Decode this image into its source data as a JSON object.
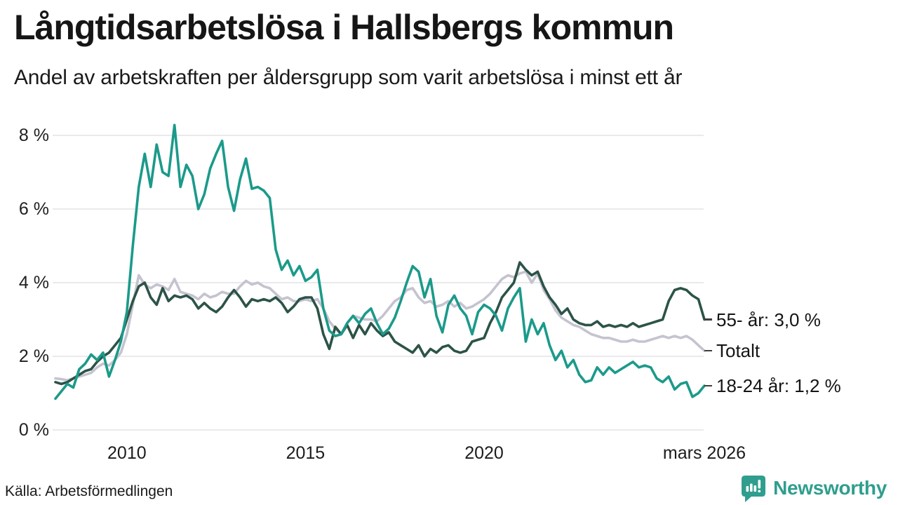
{
  "header": {
    "title": "Långtidsarbetslösa i Hallsbergs kommun",
    "subtitle": "Andel av arbetskraften per åldersgrupp som varit arbetslösa i minst ett år"
  },
  "footer": {
    "source": "Källa: Arbetsförmedlingen",
    "logo_text": "Newsworthy",
    "logo_color": "#2f9e8e"
  },
  "chart_data": {
    "type": "line",
    "title": "Långtidsarbetslösa i Hallsbergs kommun",
    "subtitle": "Andel av arbetskraften per åldersgrupp som varit arbetslösa i minst ett år",
    "x_start": "2008-01",
    "x_end": "2026-03",
    "x_unit": "months since January 2008, one value every 2 months",
    "ylim": [
      0,
      8.6
    ],
    "grid": true,
    "gridline_color": "#e4e2e7",
    "tick_color": "#3f3f3f",
    "y_ticks": [
      {
        "label": "0 %",
        "value": 0
      },
      {
        "label": "2 %",
        "value": 2
      },
      {
        "label": "4 %",
        "value": 4
      },
      {
        "label": "6 %",
        "value": 6
      },
      {
        "label": "8 %",
        "value": 8
      }
    ],
    "x_ticks": [
      {
        "label": "2010",
        "month": 24
      },
      {
        "label": "2015",
        "month": 84
      },
      {
        "label": "2020",
        "month": 144
      },
      {
        "label": "mars 2026",
        "month": 218
      }
    ],
    "series": [
      {
        "name": "55- år",
        "end_label": "55- år: 3,0 %",
        "last_value": 3.0,
        "color": "#2c5348",
        "z": 1,
        "values": [
          1.3,
          1.25,
          1.3,
          1.4,
          1.5,
          1.6,
          1.65,
          1.85,
          2.0,
          2.1,
          2.3,
          2.5,
          3.0,
          3.5,
          3.9,
          4.0,
          3.6,
          3.4,
          3.85,
          3.5,
          3.65,
          3.6,
          3.65,
          3.55,
          3.3,
          3.45,
          3.3,
          3.2,
          3.35,
          3.6,
          3.8,
          3.6,
          3.35,
          3.55,
          3.5,
          3.55,
          3.5,
          3.6,
          3.45,
          3.2,
          3.35,
          3.55,
          3.6,
          3.6,
          3.3,
          2.6,
          2.2,
          2.8,
          2.6,
          2.85,
          2.5,
          2.85,
          2.6,
          2.9,
          2.7,
          2.55,
          2.65,
          2.4,
          2.3,
          2.2,
          2.1,
          2.3,
          2.0,
          2.2,
          2.1,
          2.25,
          2.3,
          2.15,
          2.1,
          2.15,
          2.4,
          2.45,
          2.5,
          2.9,
          3.2,
          3.6,
          3.8,
          4.0,
          4.55,
          4.35,
          4.2,
          4.3,
          3.9,
          3.6,
          3.4,
          3.15,
          3.3,
          3.0,
          2.9,
          2.85,
          2.85,
          2.95,
          2.8,
          2.85,
          2.8,
          2.85,
          2.8,
          2.9,
          2.8,
          2.85,
          2.9,
          2.95,
          3.0,
          3.5,
          3.8,
          3.85,
          3.8,
          3.65,
          3.55,
          3.0
        ]
      },
      {
        "name": "Totalt",
        "end_label": "Totalt",
        "last_value": 2.2,
        "color": "#c5c3cf",
        "z": 0,
        "values": [
          1.4,
          1.38,
          1.35,
          1.4,
          1.45,
          1.5,
          1.55,
          1.7,
          1.8,
          1.75,
          1.9,
          2.1,
          2.6,
          3.4,
          4.2,
          3.95,
          3.85,
          3.95,
          3.9,
          3.8,
          4.1,
          3.75,
          3.7,
          3.65,
          3.55,
          3.7,
          3.6,
          3.65,
          3.75,
          3.7,
          3.7,
          3.9,
          4.05,
          3.95,
          4.0,
          3.9,
          3.85,
          3.7,
          3.55,
          3.6,
          3.5,
          3.5,
          3.55,
          3.5,
          3.55,
          3.3,
          2.95,
          2.75,
          2.6,
          2.9,
          3.1,
          3.05,
          3.0,
          3.0,
          2.95,
          3.1,
          3.3,
          3.5,
          3.6,
          3.8,
          3.85,
          3.6,
          3.45,
          3.5,
          3.35,
          3.4,
          3.5,
          3.35,
          3.45,
          3.3,
          3.35,
          3.45,
          3.55,
          3.7,
          3.9,
          4.1,
          4.2,
          4.15,
          4.25,
          4.3,
          4.0,
          4.25,
          3.8,
          3.55,
          3.25,
          3.05,
          2.95,
          2.85,
          2.8,
          2.7,
          2.6,
          2.55,
          2.5,
          2.5,
          2.45,
          2.4,
          2.4,
          2.45,
          2.4,
          2.4,
          2.45,
          2.5,
          2.55,
          2.5,
          2.55,
          2.5,
          2.55,
          2.45,
          2.3,
          2.15
        ]
      },
      {
        "name": "18-24 år",
        "end_label": "18-24 år: 1,2 %",
        "last_value": 1.2,
        "color": "#1b9a8a",
        "z": 2,
        "values": [
          0.85,
          1.05,
          1.25,
          1.15,
          1.65,
          1.8,
          2.05,
          1.9,
          2.1,
          1.45,
          1.9,
          2.4,
          3.2,
          5.0,
          6.6,
          7.5,
          6.6,
          7.75,
          7.0,
          6.9,
          8.28,
          6.6,
          7.2,
          6.9,
          6.0,
          6.4,
          7.1,
          7.5,
          7.85,
          6.6,
          5.95,
          6.8,
          7.37,
          6.55,
          6.6,
          6.5,
          6.3,
          4.9,
          4.35,
          4.6,
          4.2,
          4.45,
          4.05,
          4.15,
          4.35,
          3.3,
          2.7,
          2.55,
          2.6,
          2.9,
          3.1,
          2.9,
          3.15,
          3.3,
          2.9,
          2.6,
          2.75,
          3.05,
          3.5,
          4.0,
          4.45,
          4.3,
          3.6,
          4.1,
          3.1,
          2.65,
          3.4,
          3.65,
          3.3,
          3.1,
          2.6,
          3.2,
          3.4,
          3.3,
          3.1,
          2.7,
          3.3,
          3.6,
          3.85,
          2.4,
          3.0,
          2.6,
          2.9,
          2.3,
          1.9,
          2.15,
          1.7,
          1.9,
          1.5,
          1.3,
          1.35,
          1.7,
          1.5,
          1.7,
          1.55,
          1.65,
          1.75,
          1.85,
          1.7,
          1.75,
          1.7,
          1.4,
          1.3,
          1.45,
          1.1,
          1.25,
          1.3,
          0.9,
          1.0,
          1.2
        ]
      }
    ]
  }
}
